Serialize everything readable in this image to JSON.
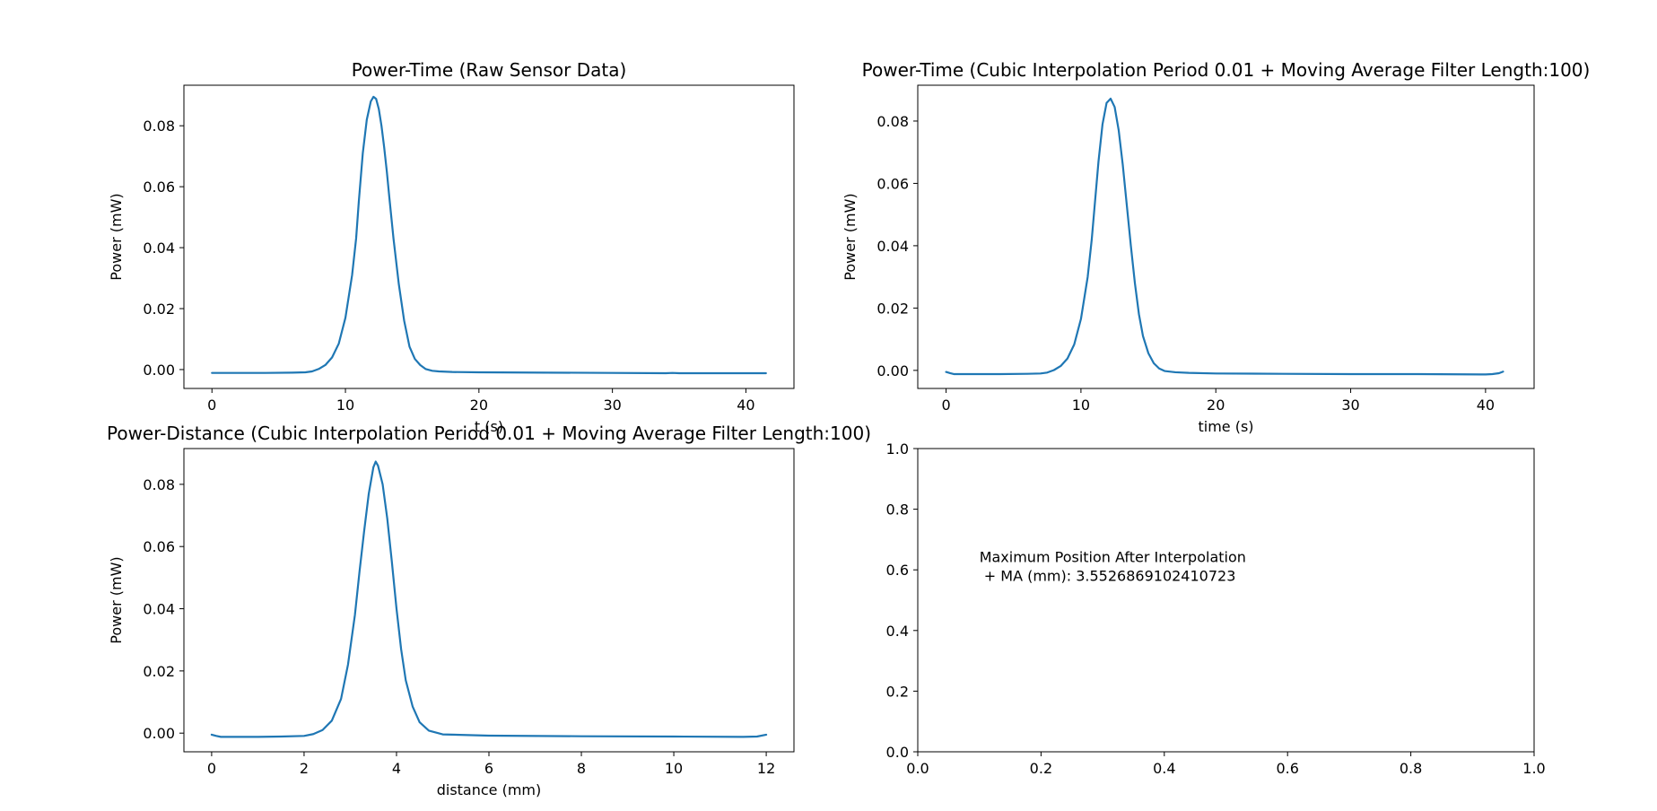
{
  "figure": {
    "background": "#ffffff",
    "line_color": "#1f77b4"
  },
  "chart_data": [
    {
      "type": "line",
      "title": "Power-Time (Raw Sensor Data)",
      "xlabel": "t (s)",
      "ylabel": "Power (mW)",
      "xlim": [
        -2.1,
        43.6
      ],
      "ylim": [
        -0.0062,
        0.0933
      ],
      "xticks": [
        0,
        10,
        20,
        30,
        40
      ],
      "xtick_labels": [
        "0",
        "10",
        "20",
        "30",
        "40"
      ],
      "yticks": [
        0.0,
        0.02,
        0.04,
        0.06,
        0.08
      ],
      "ytick_labels": [
        "0.00",
        "0.02",
        "0.04",
        "0.06",
        "0.08"
      ],
      "grid": false,
      "series": [
        {
          "color": "#1f77b4",
          "x": [
            0,
            2,
            4,
            6,
            7,
            7.5,
            8,
            8.5,
            9,
            9.5,
            10,
            10.5,
            10.8,
            11,
            11.3,
            11.6,
            11.9,
            12.1,
            12.3,
            12.5,
            12.7,
            12.9,
            13.1,
            13.3,
            13.6,
            14,
            14.4,
            14.8,
            15.2,
            15.6,
            16,
            16.5,
            17,
            18,
            20,
            25,
            30,
            34,
            34.5,
            35,
            38,
            41.5
          ],
          "y": [
            -0.0011,
            -0.0011,
            -0.0011,
            -0.001,
            -0.0009,
            -0.0006,
            0.0002,
            0.0015,
            0.004,
            0.0085,
            0.017,
            0.031,
            0.043,
            0.055,
            0.071,
            0.082,
            0.088,
            0.0895,
            0.0888,
            0.0855,
            0.08,
            0.073,
            0.065,
            0.056,
            0.043,
            0.028,
            0.016,
            0.0075,
            0.0035,
            0.0015,
            0.0002,
            -0.0004,
            -0.0006,
            -0.0008,
            -0.0009,
            -0.001,
            -0.0011,
            -0.0012,
            -0.0011,
            -0.0012,
            -0.0012,
            -0.0012
          ]
        }
      ]
    },
    {
      "type": "line",
      "title": "Power-Time (Cubic Interpolation Period 0.01 + Moving Average Filter Length:100)",
      "xlabel": "time (s)",
      "ylabel": "Power (mW)",
      "xlim": [
        -2.1,
        43.6
      ],
      "ylim": [
        -0.0058,
        0.0915
      ],
      "xticks": [
        0,
        10,
        20,
        30,
        40
      ],
      "xtick_labels": [
        "0",
        "10",
        "20",
        "30",
        "40"
      ],
      "yticks": [
        0.0,
        0.02,
        0.04,
        0.06,
        0.08
      ],
      "ytick_labels": [
        "0.00",
        "0.02",
        "0.04",
        "0.06",
        "0.08"
      ],
      "grid": false,
      "series": [
        {
          "color": "#1f77b4",
          "x": [
            0,
            0.3,
            0.6,
            1,
            2,
            4,
            6,
            7,
            7.5,
            8,
            8.5,
            9,
            9.5,
            10,
            10.5,
            10.8,
            11,
            11.3,
            11.6,
            11.9,
            12.2,
            12.5,
            12.8,
            13.1,
            13.4,
            13.7,
            14,
            14.3,
            14.6,
            15,
            15.4,
            15.8,
            16.2,
            17,
            18,
            20,
            25,
            30,
            35,
            40,
            40.5,
            41,
            41.3
          ],
          "y": [
            -0.0005,
            -0.0009,
            -0.0012,
            -0.0012,
            -0.0012,
            -0.0012,
            -0.0011,
            -0.001,
            -0.0007,
            0.0001,
            0.0014,
            0.0038,
            0.0083,
            0.0165,
            0.03,
            0.042,
            0.052,
            0.067,
            0.079,
            0.0858,
            0.0872,
            0.0845,
            0.077,
            0.066,
            0.053,
            0.04,
            0.028,
            0.018,
            0.011,
            0.0055,
            0.0023,
            0.0006,
            -0.0002,
            -0.0006,
            -0.0008,
            -0.001,
            -0.0011,
            -0.0012,
            -0.0012,
            -0.0013,
            -0.0012,
            -0.0009,
            -0.0004
          ]
        }
      ]
    },
    {
      "type": "line",
      "title": "Power-Distance (Cubic Interpolation Period 0.01 + Moving Average Filter Length:100)",
      "xlabel": "distance (mm)",
      "ylabel": "Power (mW)",
      "xlim": [
        -0.6,
        12.6
      ],
      "ylim": [
        -0.006,
        0.0915
      ],
      "xticks": [
        0,
        2,
        4,
        6,
        8,
        10,
        12
      ],
      "xtick_labels": [
        "0",
        "2",
        "4",
        "6",
        "8",
        "10",
        "12"
      ],
      "yticks": [
        0.0,
        0.02,
        0.04,
        0.06,
        0.08
      ],
      "ytick_labels": [
        "0.00",
        "0.02",
        "0.04",
        "0.06",
        "0.08"
      ],
      "grid": false,
      "series": [
        {
          "color": "#1f77b4",
          "x": [
            0,
            0.1,
            0.2,
            0.4,
            1,
            1.5,
            2,
            2.2,
            2.4,
            2.6,
            2.8,
            2.95,
            3.1,
            3.2,
            3.3,
            3.4,
            3.5,
            3.55,
            3.6,
            3.7,
            3.8,
            3.9,
            4,
            4.1,
            4.2,
            4.35,
            4.5,
            4.7,
            5,
            6,
            8,
            10,
            11.5,
            11.8,
            12
          ],
          "y": [
            -0.0005,
            -0.0009,
            -0.0012,
            -0.0012,
            -0.0012,
            -0.0011,
            -0.0009,
            -0.0003,
            0.001,
            0.004,
            0.011,
            0.022,
            0.038,
            0.052,
            0.065,
            0.077,
            0.0855,
            0.0873,
            0.086,
            0.08,
            0.069,
            0.055,
            0.04,
            0.027,
            0.017,
            0.0085,
            0.0035,
            0.0008,
            -0.0004,
            -0.0008,
            -0.001,
            -0.0011,
            -0.0012,
            -0.0011,
            -0.0005
          ]
        }
      ]
    },
    {
      "type": "text",
      "title": "",
      "xlabel": "",
      "ylabel": "",
      "xlim": [
        0,
        1
      ],
      "ylim": [
        0,
        1
      ],
      "xticks": [
        0.0,
        0.2,
        0.4,
        0.6,
        0.8,
        1.0
      ],
      "xtick_labels": [
        "0.0",
        "0.2",
        "0.4",
        "0.6",
        "0.8",
        "1.0"
      ],
      "yticks": [
        0.0,
        0.2,
        0.4,
        0.6,
        0.8,
        1.0
      ],
      "ytick_labels": [
        "0.0",
        "0.2",
        "0.4",
        "0.6",
        "0.8",
        "1.0"
      ],
      "grid": false,
      "series": [],
      "annotation": {
        "lines": [
          "Maximum Position After Interpolation",
          " + MA (mm): 3.5526869102410723"
        ],
        "x": 0.1,
        "y": 0.62
      }
    }
  ]
}
